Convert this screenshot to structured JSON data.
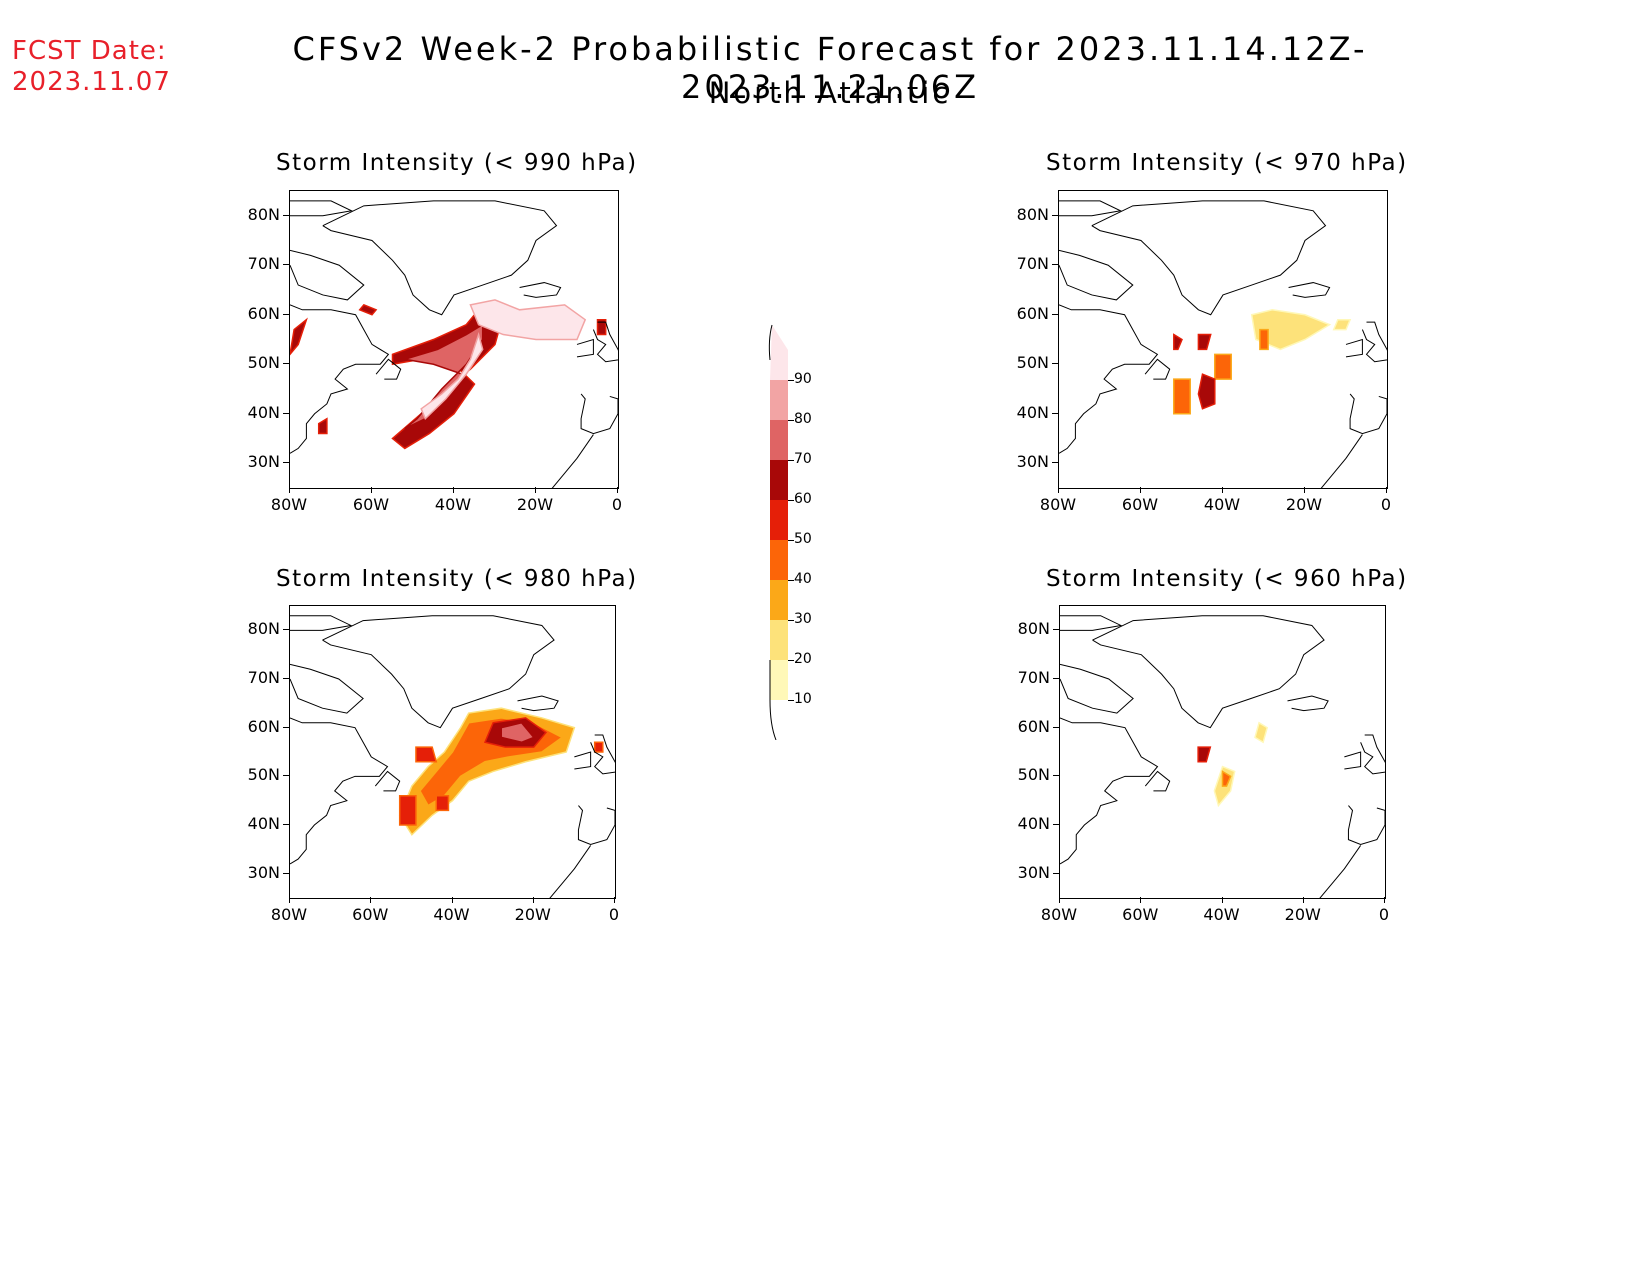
{
  "header": {
    "fcst_label": "FCST Date:",
    "fcst_date": "2023.11.07",
    "title": "CFSv2 Week-2 Probabilistic Forecast for 2023.11.14.12Z-2023.11.21.06Z",
    "region": "North Atlantic"
  },
  "axes": {
    "lat_labels": [
      "80N",
      "70N",
      "60N",
      "50N",
      "40N",
      "30N"
    ],
    "lat_values": [
      80,
      70,
      60,
      50,
      40,
      30
    ],
    "lon_labels": [
      "80W",
      "60W",
      "40W",
      "20W",
      "0"
    ],
    "lon_values": [
      -80,
      -60,
      -40,
      -20,
      0
    ],
    "lon_range": [
      -80,
      0
    ],
    "lat_range": [
      25,
      85
    ]
  },
  "colorbar": {
    "levels": [
      "10",
      "20",
      "30",
      "40",
      "50",
      "60",
      "70",
      "80",
      "90"
    ],
    "colors": [
      "#fff8b8",
      "#fde27a",
      "#fba818",
      "#fc6508",
      "#e51f08",
      "#a80808",
      "#df6464",
      "#f2a4a4",
      "#fde6ea"
    ]
  },
  "panels": [
    {
      "id": "p990",
      "title": "Storm Intensity (< 990 hPa)",
      "blobs": [
        {
          "level": 5,
          "pts": [
            [
              -55,
              52
            ],
            [
              -45,
              55
            ],
            [
              -37,
              58
            ],
            [
              -33,
              62
            ],
            [
              -28,
              60
            ],
            [
              -30,
              54
            ],
            [
              -36,
              49
            ],
            [
              -42,
              45
            ],
            [
              -48,
              40
            ],
            [
              -55,
              35
            ],
            [
              -52,
              33
            ],
            [
              -46,
              36
            ],
            [
              -40,
              40
            ],
            [
              -35,
              46
            ],
            [
              -40,
              50
            ],
            [
              -48,
              51
            ],
            [
              -55,
              50
            ]
          ]
        },
        {
          "level": 6,
          "pts": [
            [
              -52,
              51
            ],
            [
              -44,
              53
            ],
            [
              -37,
              56
            ],
            [
              -33,
              58
            ],
            [
              -33,
              55
            ],
            [
              -37,
              50
            ],
            [
              -43,
              45
            ],
            [
              -49,
              39
            ],
            [
              -52,
              37
            ],
            [
              -47,
              39
            ],
            [
              -42,
              43
            ],
            [
              -38,
              48
            ],
            [
              -45,
              50
            ]
          ]
        },
        {
          "level": 8,
          "pts": [
            [
              -48,
              41
            ],
            [
              -43,
              44
            ],
            [
              -39,
              47
            ],
            [
              -36,
              51
            ],
            [
              -34,
              56
            ],
            [
              -33,
              53
            ],
            [
              -37,
              48
            ],
            [
              -42,
              43
            ],
            [
              -47,
              39
            ]
          ]
        },
        {
          "level": 8,
          "pts": [
            [
              -36,
              62
            ],
            [
              -30,
              63
            ],
            [
              -24,
              61
            ],
            [
              -13,
              62
            ],
            [
              -8,
              59
            ],
            [
              -10,
              55
            ],
            [
              -20,
              55
            ],
            [
              -28,
              56
            ],
            [
              -34,
              58
            ]
          ]
        },
        {
          "level": 5,
          "pts": [
            [
              -62,
              62
            ],
            [
              -59,
              61
            ],
            [
              -60,
              60
            ],
            [
              -63,
              61
            ]
          ]
        },
        {
          "level": 5,
          "pts": [
            [
              -79,
              57
            ],
            [
              -76,
              59
            ],
            [
              -78,
              54
            ],
            [
              -80,
              52
            ]
          ]
        },
        {
          "level": 5,
          "pts": [
            [
              -73,
              38
            ],
            [
              -71,
              39
            ],
            [
              -71,
              36
            ],
            [
              -73,
              36
            ]
          ]
        },
        {
          "level": 5,
          "pts": [
            [
              -5,
              59
            ],
            [
              -3,
              59
            ],
            [
              -3,
              56
            ],
            [
              -5,
              56
            ]
          ]
        }
      ]
    },
    {
      "id": "p970",
      "title": "Storm Intensity (< 970 hPa)",
      "blobs": [
        {
          "level": 1,
          "pts": [
            [
              -33,
              60
            ],
            [
              -28,
              61
            ],
            [
              -20,
              60
            ],
            [
              -14,
              58
            ],
            [
              -20,
              55
            ],
            [
              -26,
              53
            ],
            [
              -32,
              55
            ]
          ]
        },
        {
          "level": 1,
          "pts": [
            [
              -12,
              59
            ],
            [
              -9,
              59
            ],
            [
              -10,
              57
            ],
            [
              -13,
              57
            ]
          ]
        },
        {
          "level": 3,
          "pts": [
            [
              -31,
              57
            ],
            [
              -29,
              57
            ],
            [
              -29,
              53
            ],
            [
              -31,
              53
            ]
          ]
        },
        {
          "level": 3,
          "pts": [
            [
              -42,
              52
            ],
            [
              -38,
              52
            ],
            [
              -38,
              47
            ],
            [
              -42,
              47
            ]
          ]
        },
        {
          "level": 3,
          "pts": [
            [
              -52,
              47
            ],
            [
              -48,
              47
            ],
            [
              -48,
              40
            ],
            [
              -52,
              40
            ]
          ]
        },
        {
          "level": 5,
          "pts": [
            [
              -45,
              48
            ],
            [
              -42,
              47
            ],
            [
              -42,
              42
            ],
            [
              -45,
              41
            ],
            [
              -46,
              44
            ]
          ]
        },
        {
          "level": 5,
          "pts": [
            [
              -52,
              56
            ],
            [
              -50,
              55
            ],
            [
              -51,
              53
            ],
            [
              -52,
              53
            ]
          ]
        },
        {
          "level": 5,
          "pts": [
            [
              -46,
              56
            ],
            [
              -43,
              56
            ],
            [
              -44,
              53
            ],
            [
              -46,
              53
            ]
          ]
        }
      ]
    },
    {
      "id": "p980",
      "title": "Storm Intensity (< 980 hPa)",
      "blobs": [
        {
          "level": 2,
          "pts": [
            [
              -36,
              63
            ],
            [
              -28,
              64
            ],
            [
              -18,
              62
            ],
            [
              -10,
              60
            ],
            [
              -12,
              55
            ],
            [
              -22,
              53
            ],
            [
              -30,
              51
            ],
            [
              -36,
              49
            ],
            [
              -40,
              45
            ],
            [
              -45,
              42
            ],
            [
              -50,
              38
            ],
            [
              -53,
              42
            ],
            [
              -50,
              48
            ],
            [
              -46,
              52
            ],
            [
              -42,
              55
            ],
            [
              -38,
              60
            ]
          ]
        },
        {
          "level": 3,
          "pts": [
            [
              -36,
              61
            ],
            [
              -28,
              62
            ],
            [
              -20,
              61
            ],
            [
              -13,
              58
            ],
            [
              -18,
              55
            ],
            [
              -26,
              54
            ],
            [
              -32,
              53
            ],
            [
              -38,
              50
            ],
            [
              -42,
              46
            ],
            [
              -46,
              44
            ],
            [
              -48,
              47
            ],
            [
              -44,
              51
            ],
            [
              -40,
              55
            ]
          ]
        },
        {
          "level": 5,
          "pts": [
            [
              -30,
              61
            ],
            [
              -22,
              62
            ],
            [
              -17,
              59
            ],
            [
              -20,
              56
            ],
            [
              -27,
              56
            ],
            [
              -32,
              57
            ]
          ]
        },
        {
          "level": 6,
          "pts": [
            [
              -28,
              60
            ],
            [
              -23,
              61
            ],
            [
              -20,
              58
            ],
            [
              -23,
              57
            ],
            [
              -28,
              58
            ]
          ]
        },
        {
          "level": 4,
          "pts": [
            [
              -49,
              56
            ],
            [
              -45,
              56
            ],
            [
              -44,
              53
            ],
            [
              -49,
              53
            ]
          ]
        },
        {
          "level": 4,
          "pts": [
            [
              -44,
              46
            ],
            [
              -41,
              46
            ],
            [
              -41,
              43
            ],
            [
              -44,
              43
            ]
          ]
        },
        {
          "level": 4,
          "pts": [
            [
              -53,
              46
            ],
            [
              -49,
              46
            ],
            [
              -49,
              40
            ],
            [
              -53,
              40
            ]
          ]
        },
        {
          "level": 4,
          "pts": [
            [
              -5,
              57
            ],
            [
              -3,
              57
            ],
            [
              -3,
              55
            ],
            [
              -5,
              55
            ]
          ]
        }
      ]
    },
    {
      "id": "p960",
      "title": "Storm Intensity (< 960 hPa)",
      "blobs": [
        {
          "level": 1,
          "pts": [
            [
              -31,
              61
            ],
            [
              -29,
              60
            ],
            [
              -30,
              57
            ],
            [
              -32,
              58
            ]
          ]
        },
        {
          "level": 1,
          "pts": [
            [
              -40,
              52
            ],
            [
              -37,
              51
            ],
            [
              -38,
              47
            ],
            [
              -41,
              44
            ],
            [
              -42,
              47
            ]
          ]
        },
        {
          "level": 3,
          "pts": [
            [
              -40,
              51
            ],
            [
              -38,
              50
            ],
            [
              -39,
              48
            ],
            [
              -40,
              48
            ]
          ]
        },
        {
          "level": 5,
          "pts": [
            [
              -46,
              56
            ],
            [
              -43,
              56
            ],
            [
              -44,
              53
            ],
            [
              -46,
              53
            ]
          ]
        }
      ]
    }
  ]
}
